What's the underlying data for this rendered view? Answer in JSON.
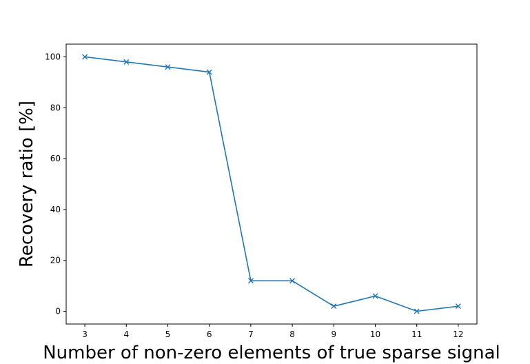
{
  "chart_data": {
    "type": "line",
    "title": "",
    "xlabel": "Number of non-zero elements of true sparse signal",
    "ylabel": "Recovery ratio [%]",
    "x": [
      3,
      4,
      5,
      6,
      7,
      8,
      9,
      10,
      11,
      12
    ],
    "series": [
      {
        "values": [
          100,
          98,
          96,
          94,
          12,
          12,
          2,
          6,
          0,
          2
        ],
        "color": "#1f77b4",
        "marker": "x"
      }
    ],
    "xlim": [
      2.55,
      12.45
    ],
    "ylim": [
      -5,
      105
    ],
    "xticks": [
      "3",
      "4",
      "5",
      "6",
      "7",
      "8",
      "9",
      "10",
      "11",
      "12"
    ],
    "yticks": [
      "0",
      "20",
      "40",
      "60",
      "80",
      "100"
    ],
    "grid": false,
    "legend": "none"
  }
}
